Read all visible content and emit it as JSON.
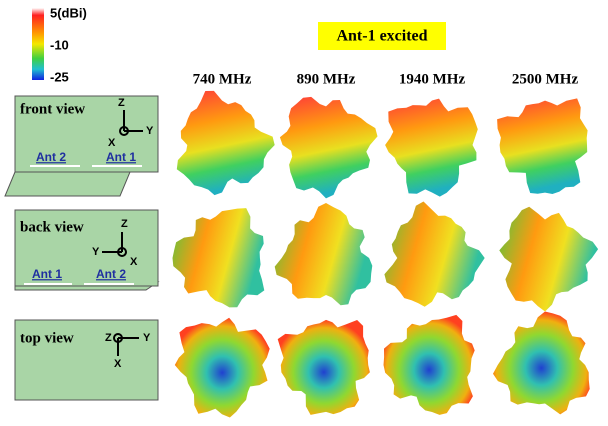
{
  "colorbar": {
    "labels": [
      "5(dBi)",
      "-10",
      "-25"
    ]
  },
  "title": "Ant-1 excited",
  "frequencies": [
    "740 MHz",
    "890 MHz",
    "1940 MHz",
    "2500 MHz"
  ],
  "views": [
    {
      "label": "front view",
      "axes": [
        "Z",
        "Y",
        "X"
      ],
      "antennas": [
        "Ant 2",
        "Ant 1"
      ]
    },
    {
      "label": "back view",
      "axes": [
        "Z",
        "Y",
        "X"
      ],
      "antennas": [
        "Ant 1",
        "Ant 2"
      ]
    },
    {
      "label": "top view",
      "axes": [
        "Z",
        "Y",
        "X"
      ]
    }
  ]
}
